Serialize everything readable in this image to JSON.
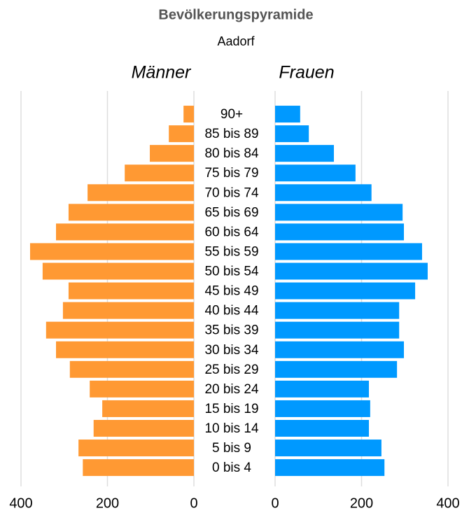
{
  "chart_data": {
    "type": "pyramid",
    "title": "Bevölkerungspyramide",
    "subtitle": "Aadorf",
    "categories": [
      "90+",
      "85 bis 89",
      "80 bis 84",
      "75 bis 79",
      "70 bis 74",
      "65 bis 69",
      "60 bis 64",
      "55 bis 59",
      "50 bis 54",
      "45 bis 49",
      "40 bis 44",
      "35 bis 39",
      "30 bis 34",
      "25 bis 29",
      "20 bis 24",
      "15 bis 19",
      "10 bis 14",
      "5 bis 9",
      "0 bis 4"
    ],
    "series": [
      {
        "name": "Männer",
        "color": "#ff9933",
        "values": [
          24,
          58,
          102,
          160,
          246,
          290,
          319,
          379,
          350,
          290,
          303,
          342,
          319,
          287,
          241,
          212,
          232,
          267,
          257
        ]
      },
      {
        "name": "Frauen",
        "color": "#0099ff",
        "values": [
          58,
          78,
          136,
          186,
          223,
          295,
          298,
          340,
          353,
          324,
          287,
          287,
          298,
          282,
          217,
          220,
          217,
          246,
          253
        ]
      }
    ],
    "xlim": [
      0,
      400
    ],
    "xticks": [
      0,
      200,
      400
    ],
    "grid": true
  }
}
